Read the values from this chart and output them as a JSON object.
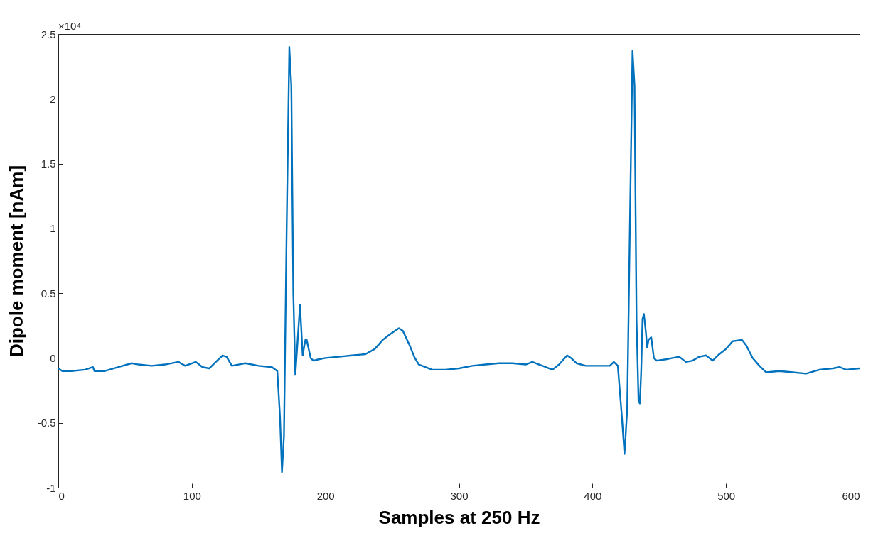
{
  "chart_data": {
    "type": "line",
    "xlabel": "Samples at 250 Hz",
    "ylabel": "Dipole moment [nAm]",
    "annotations": [
      "×10⁴"
    ],
    "xlim": [
      0,
      600
    ],
    "xticks": [
      0,
      100,
      200,
      300,
      400,
      500,
      600
    ],
    "ylim": [
      -1,
      2.5
    ],
    "yticks": [
      -1,
      -0.5,
      0,
      0.5,
      1,
      1.5,
      2,
      2.5
    ],
    "grid": false,
    "line_style": "solid",
    "marker": "none",
    "series": [
      {
        "color": "#0072bd",
        "x": [
          0,
          3,
          10,
          20,
          26,
          27,
          35,
          45,
          55,
          60,
          70,
          80,
          90,
          95,
          103,
          108,
          113,
          118,
          123,
          126,
          130,
          135,
          140,
          150,
          160,
          164,
          166,
          167.5,
          169,
          171,
          173,
          174.5,
          176,
          177.5,
          179,
          181,
          183,
          185,
          186,
          189,
          191,
          195,
          200,
          210,
          220,
          230,
          237,
          243,
          248,
          255,
          258,
          263,
          267,
          270,
          280,
          290,
          300,
          310,
          320,
          330,
          340,
          350,
          355,
          360,
          365,
          370,
          375,
          381,
          384,
          388,
          395,
          405,
          413,
          416,
          419,
          422,
          424,
          426,
          428,
          430,
          431.5,
          433,
          434.5,
          435.5,
          436.5,
          437.5,
          438.5,
          440,
          441,
          442,
          444,
          446,
          448,
          455,
          460,
          465,
          470,
          475,
          480,
          485,
          490,
          495,
          500,
          505,
          512,
          515,
          520,
          525,
          530,
          540,
          550,
          560,
          570,
          580,
          585,
          590,
          600
        ],
        "values": [
          -0.08,
          -0.1,
          -0.1,
          -0.09,
          -0.07,
          -0.1,
          -0.1,
          -0.07,
          -0.04,
          -0.05,
          -0.06,
          -0.05,
          -0.03,
          -0.06,
          -0.03,
          -0.07,
          -0.08,
          -0.03,
          0.02,
          0.01,
          -0.06,
          -0.05,
          -0.04,
          -0.06,
          -0.07,
          -0.1,
          -0.45,
          -0.88,
          -0.6,
          1.0,
          2.4,
          2.1,
          0.5,
          -0.13,
          0.1,
          0.41,
          0.02,
          0.14,
          0.14,
          0.0,
          -0.02,
          -0.01,
          0.0,
          0.01,
          0.02,
          0.03,
          0.07,
          0.14,
          0.18,
          0.23,
          0.21,
          0.1,
          0.0,
          -0.05,
          -0.09,
          -0.09,
          -0.08,
          -0.06,
          -0.05,
          -0.04,
          -0.04,
          -0.05,
          -0.03,
          -0.05,
          -0.07,
          -0.09,
          -0.05,
          0.02,
          0.0,
          -0.04,
          -0.06,
          -0.06,
          -0.06,
          -0.03,
          -0.06,
          -0.45,
          -0.74,
          -0.4,
          1.0,
          2.37,
          2.1,
          0.3,
          -0.33,
          -0.35,
          -0.1,
          0.3,
          0.34,
          0.2,
          0.08,
          0.14,
          0.16,
          0.0,
          -0.02,
          -0.01,
          0.0,
          0.01,
          -0.03,
          -0.02,
          0.01,
          0.02,
          -0.02,
          0.03,
          0.07,
          0.13,
          0.14,
          0.1,
          0.0,
          -0.06,
          -0.11,
          -0.1,
          -0.11,
          -0.12,
          -0.09,
          -0.08,
          -0.07,
          -0.09,
          -0.08
        ]
      }
    ]
  }
}
